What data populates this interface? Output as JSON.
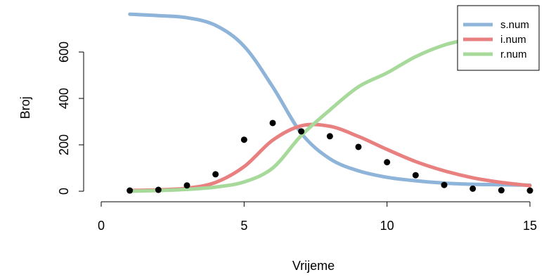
{
  "chart_data": {
    "type": "line",
    "xlabel": "Vrijeme",
    "ylabel": "Broj",
    "xlim": [
      0,
      15
    ],
    "ylim": [
      0,
      763
    ],
    "x_ticks": [
      "0",
      "5",
      "10",
      "15"
    ],
    "y_ticks": [
      "0",
      "200",
      "400",
      "600"
    ],
    "legend_position": "top-right",
    "x": [
      1,
      2,
      3,
      4,
      5,
      6,
      7,
      8,
      9,
      10,
      11,
      12,
      13,
      14,
      15
    ],
    "series": [
      {
        "name": "s.num",
        "color": "#8fb4d9",
        "values": [
          763,
          757,
          748,
          715,
          625,
          450,
          250,
          140,
          88,
          60,
          45,
          35,
          30,
          28,
          26
        ]
      },
      {
        "name": "i.num",
        "color": "#e88080",
        "values": [
          3,
          6,
          13,
          38,
          106,
          220,
          282,
          280,
          236,
          180,
          128,
          88,
          58,
          38,
          24
        ]
      },
      {
        "name": "r.num",
        "color": "#a6d99a",
        "values": [
          0,
          3,
          8,
          18,
          40,
          100,
          240,
          350,
          450,
          510,
          580,
          630,
          660,
          695,
          712
        ]
      }
    ],
    "observed": {
      "type": "scatter",
      "color": "#000000",
      "x": [
        1,
        2,
        3,
        4,
        5,
        6,
        7,
        8,
        9,
        10,
        11,
        12,
        13,
        14,
        15
      ],
      "y": [
        3,
        6,
        25,
        73,
        222,
        294,
        258,
        237,
        191,
        125,
        69,
        27,
        11,
        4,
        3
      ]
    }
  }
}
